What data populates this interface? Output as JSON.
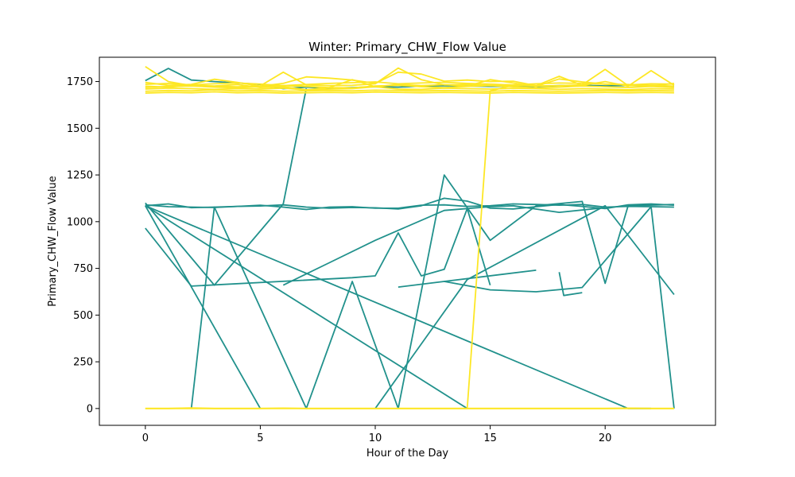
{
  "chart_data": {
    "type": "line",
    "title": "Winter: Primary_CHW_Flow Value",
    "xlabel": "Hour of the Day",
    "ylabel": "Primary_CHW_Flow Value",
    "xlim": [
      -2.0,
      24.8
    ],
    "ylim": [
      -90,
      1880
    ],
    "xticks": [
      0,
      5,
      10,
      15,
      20
    ],
    "yticks": [
      0,
      250,
      500,
      750,
      1000,
      1250,
      1500,
      1750
    ],
    "grid": false,
    "legend": "none",
    "colors": {
      "teal": "#21918c",
      "yellow": "#fde725"
    },
    "series": [
      {
        "color": "teal",
        "x": [
          0,
          1,
          2,
          3,
          4,
          5,
          6,
          7,
          8,
          9,
          10,
          11,
          12,
          13,
          14,
          15,
          16,
          17,
          18,
          19,
          20,
          21,
          22,
          23
        ],
        "y": [
          1755,
          1820,
          1758,
          1750,
          1742,
          1735,
          1712,
          1720,
          1715,
          1718,
          1722,
          1720,
          1725,
          1728,
          1726,
          1724,
          1725,
          1724,
          1728,
          1730,
          1727,
          1729,
          1726,
          1725
        ]
      },
      {
        "color": "teal",
        "x": [
          0,
          1,
          2,
          3,
          4,
          5,
          6,
          7,
          8,
          9,
          10,
          11,
          12,
          13,
          14,
          15,
          16,
          17,
          18,
          19,
          20,
          21,
          22,
          23
        ],
        "y": [
          1085,
          1095,
          1075,
          1078,
          1082,
          1088,
          1078,
          1065,
          1078,
          1080,
          1072,
          1072,
          1088,
          1090,
          1082,
          1085,
          1095,
          1092,
          1088,
          1092,
          1078,
          1082,
          1080,
          1078
        ]
      },
      {
        "color": "teal",
        "x": [
          0,
          1,
          2,
          3,
          4,
          5,
          6,
          7,
          8,
          9,
          10,
          11,
          12,
          13,
          14,
          15,
          16,
          17,
          18,
          19,
          20,
          21,
          22,
          23
        ],
        "y": [
          1090,
          1080,
          1078,
          1076,
          1082,
          1084,
          1090,
          1078,
          1072,
          1076,
          1074,
          1068,
          1085,
          1125,
          1110,
          1072,
          1068,
          1080,
          1092,
          1082,
          1070,
          1090,
          1095,
          1088
        ]
      },
      {
        "color": "teal",
        "x": [
          0,
          3,
          6,
          7
        ],
        "y": [
          1100,
          660,
          1095,
          1713
        ]
      },
      {
        "color": "teal",
        "x": [
          6,
          8,
          10,
          13,
          15,
          16,
          18,
          20
        ],
        "y": [
          660,
          780,
          900,
          1060,
          1080,
          1085,
          1050,
          1075
        ]
      },
      {
        "color": "teal",
        "x": [
          0,
          2,
          9,
          10,
          11,
          12,
          13,
          14,
          15
        ],
        "y": [
          965,
          655,
          700,
          710,
          940,
          710,
          745,
          1070,
          660
        ]
      },
      {
        "color": "teal",
        "x": [
          0,
          5
        ],
        "y": [
          1085,
          0
        ]
      },
      {
        "color": "teal",
        "x": [
          2,
          3,
          7,
          9,
          11,
          13,
          15,
          17,
          19,
          20,
          21,
          23
        ],
        "y": [
          0,
          1078,
          0,
          680,
          0,
          1250,
          900,
          1085,
          1108,
          670,
          1085,
          1092
        ]
      },
      {
        "color": "teal",
        "x": [
          0,
          14
        ],
        "y": [
          1085,
          0
        ]
      },
      {
        "color": "teal",
        "x": [
          0,
          21,
          22
        ],
        "y": [
          1085,
          0,
          0
        ]
      },
      {
        "color": "teal",
        "x": [
          10,
          14,
          20,
          23
        ],
        "y": [
          0,
          690,
          1085,
          610
        ]
      },
      {
        "color": "teal",
        "x": [
          11,
          13,
          15,
          17,
          19,
          22,
          23
        ],
        "y": [
          650,
          680,
          635,
          625,
          648,
          1080,
          0
        ]
      },
      {
        "color": "teal",
        "x": [
          13,
          17
        ],
        "y": [
          680,
          740
        ]
      },
      {
        "color": "teal",
        "x": [
          18,
          18.2,
          19
        ],
        "y": [
          730,
          605,
          620
        ]
      },
      {
        "color": "yellow",
        "x": [
          0,
          1,
          2,
          3,
          4,
          5,
          6,
          7,
          8,
          9,
          10,
          11,
          12,
          13,
          14,
          15,
          16,
          17,
          18,
          19,
          20,
          21,
          22,
          23
        ],
        "y": [
          1830,
          1750,
          1728,
          1725,
          1722,
          1727,
          1800,
          1732,
          1728,
          1730,
          1738,
          1822,
          1760,
          1732,
          1735,
          1728,
          1730,
          1726,
          1728,
          1732,
          1815,
          1728,
          1730,
          1725
        ]
      },
      {
        "color": "yellow",
        "x": [
          0,
          1,
          2,
          3,
          4,
          5,
          6,
          7,
          8,
          9,
          10,
          11,
          12,
          13,
          14,
          15,
          16,
          17,
          18,
          19,
          20,
          21,
          22,
          23
        ],
        "y": [
          1745,
          1730,
          1735,
          1762,
          1745,
          1725,
          1740,
          1775,
          1768,
          1758,
          1740,
          1800,
          1790,
          1752,
          1758,
          1750,
          1752,
          1728,
          1778,
          1730,
          1750,
          1725,
          1808,
          1730
        ]
      },
      {
        "color": "yellow",
        "x": [
          0,
          1,
          2,
          3,
          4,
          5,
          6,
          7,
          8,
          9,
          10,
          11,
          12,
          13,
          14,
          15,
          16,
          17,
          18,
          19,
          20,
          21,
          22,
          23
        ],
        "y": [
          1725,
          1720,
          1730,
          1726,
          1734,
          1718,
          1722,
          1706,
          1718,
          1760,
          1722,
          1735,
          1728,
          1733,
          1726,
          1760,
          1742,
          1724,
          1764,
          1748,
          1736,
          1734,
          1726,
          1740
        ]
      },
      {
        "color": "yellow",
        "x": [
          0,
          1,
          2,
          3,
          4,
          5,
          6,
          7,
          8,
          9,
          10,
          11,
          12,
          13,
          14,
          15,
          16,
          17,
          18,
          19,
          20,
          21,
          22,
          23
        ],
        "y": [
          1710,
          1715,
          1712,
          1708,
          1712,
          1710,
          1715,
          1705,
          1710,
          1712,
          1722,
          1710,
          1708,
          1715,
          1712,
          1710,
          1714,
          1712,
          1708,
          1712,
          1710,
          1706,
          1712,
          1710
        ]
      },
      {
        "color": "yellow",
        "x": [
          0,
          1,
          2,
          3,
          4,
          5,
          6,
          7,
          8,
          9,
          10,
          11,
          12,
          13,
          14,
          15,
          16,
          17,
          18,
          19,
          20,
          21,
          22,
          23
        ],
        "y": [
          1698,
          1702,
          1700,
          1705,
          1700,
          1702,
          1698,
          1700,
          1702,
          1700,
          1704,
          1702,
          1700,
          1702,
          1700,
          1698,
          1702,
          1700,
          1698,
          1700,
          1702,
          1700,
          1702,
          1700
        ]
      },
      {
        "color": "yellow",
        "x": [
          0,
          1,
          2,
          3,
          4,
          5,
          6,
          7,
          8,
          9,
          10,
          11,
          12,
          13,
          14,
          15,
          16,
          17,
          18,
          19,
          20,
          21,
          22,
          23
        ],
        "y": [
          1688,
          1692,
          1690,
          1695,
          1690,
          1692,
          1688,
          1690,
          1692,
          1690,
          1694,
          1692,
          1690,
          1692,
          1690,
          1688,
          1692,
          1690,
          1688,
          1690,
          1692,
          1690,
          1692,
          1690
        ]
      },
      {
        "color": "yellow",
        "x": [
          0,
          1,
          2,
          3,
          4,
          5,
          6,
          7,
          8,
          9,
          10,
          11,
          12,
          13,
          14,
          15,
          16,
          17,
          18,
          19,
          20,
          21,
          22,
          23
        ],
        "y": [
          1735,
          1740,
          1732,
          1738,
          1742,
          1736,
          1728,
          1734,
          1740,
          1744,
          1748,
          1738,
          1742,
          1746,
          1740,
          1736,
          1732,
          1738,
          1742,
          1740,
          1736,
          1732,
          1738,
          1736
        ]
      },
      {
        "color": "yellow",
        "x": [
          0,
          1,
          2,
          3,
          4,
          5,
          6,
          7,
          8,
          9,
          10,
          11,
          12,
          13,
          14,
          15,
          16,
          17,
          18,
          19,
          20,
          21,
          22,
          23
        ],
        "y": [
          1718,
          1724,
          1726,
          1720,
          1716,
          1722,
          1728,
          1724,
          1718,
          1716,
          1726,
          1730,
          1722,
          1718,
          1724,
          1728,
          1722,
          1716,
          1720,
          1726,
          1722,
          1718,
          1724,
          1718
        ]
      },
      {
        "color": "yellow",
        "x": [
          0,
          1,
          2,
          3,
          4,
          5,
          6,
          7,
          8,
          9,
          10,
          11,
          12,
          13,
          14,
          15,
          16,
          17,
          18,
          19,
          20,
          21,
          22,
          23
        ],
        "y": [
          0,
          0,
          3,
          0,
          0,
          0,
          2,
          0,
          0,
          0,
          0,
          0,
          0,
          0,
          0,
          0,
          0,
          0,
          0,
          0,
          0,
          2,
          0,
          0
        ]
      },
      {
        "color": "yellow",
        "x": [
          0,
          1,
          2,
          3,
          4,
          5,
          6,
          7,
          8,
          9,
          10,
          11,
          12,
          13,
          14,
          15,
          16,
          17,
          18,
          19,
          20,
          21,
          22,
          23
        ],
        "y": [
          0,
          0,
          0,
          0,
          0,
          0,
          0,
          0,
          0,
          0,
          0,
          0,
          0,
          0,
          0,
          0,
          0,
          0,
          0,
          0,
          0,
          0,
          0,
          0
        ]
      },
      {
        "color": "yellow",
        "x": [
          14,
          15,
          16,
          17
        ],
        "y": [
          0,
          1700,
          1730,
          1728
        ]
      }
    ]
  }
}
